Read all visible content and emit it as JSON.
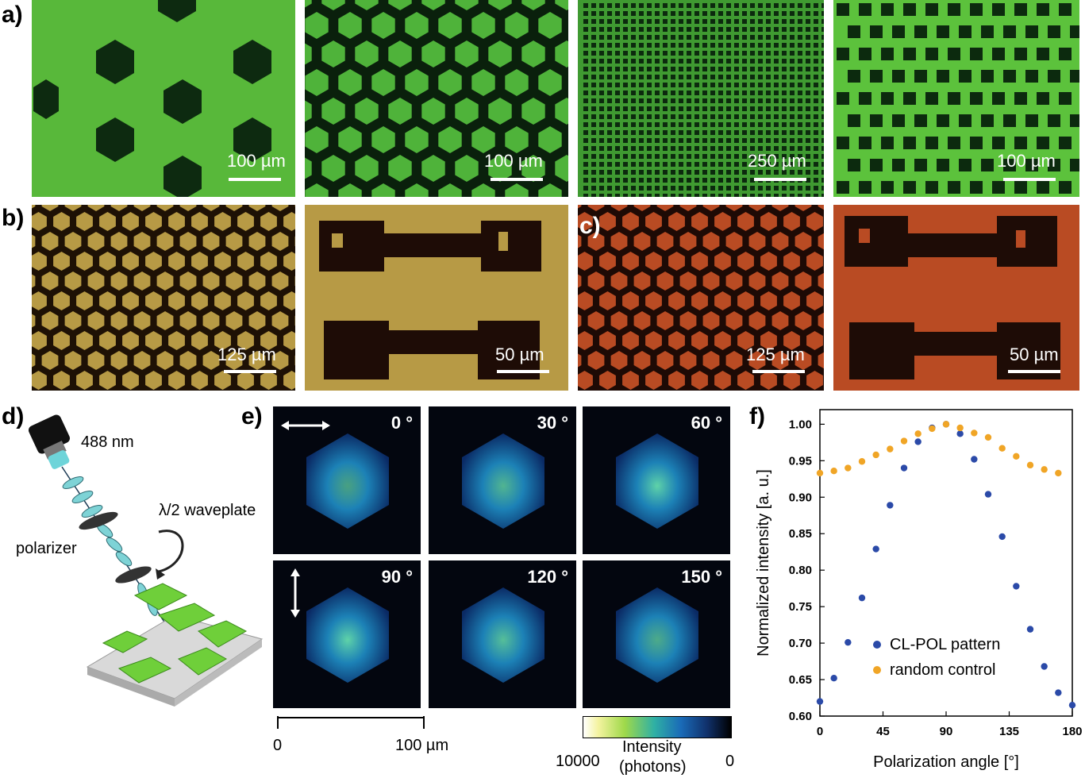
{
  "panel_labels": {
    "a": "a)",
    "b": "b)",
    "c": "c)",
    "d": "d)",
    "e": "e)",
    "f": "f)"
  },
  "row_a": {
    "scale_bars": [
      "100 µm",
      "100 µm",
      "250 µm",
      "100 µm"
    ],
    "colors": {
      "bg": "#58b83a",
      "dark": "#0d2a10"
    }
  },
  "row_bc": {
    "scale_bars": [
      "125 µm",
      "50 µm",
      "125 µm",
      "50 µm"
    ],
    "colors": {
      "yellow_bg": "#b79a45",
      "red_bg": "#b94b23",
      "dark": "#1e0c06"
    }
  },
  "panel_d": {
    "wavelength": "488 nm",
    "waveplate": "λ/2 waveplate",
    "polarizer": "polarizer"
  },
  "panel_e": {
    "angles": [
      "0 °",
      "30 °",
      "60 °",
      "90 °",
      "120 °",
      "150 °"
    ],
    "scale_min": "0",
    "scale_max": "100 µm",
    "colorbar_label_1": "Intensity",
    "colorbar_label_2": "(photons)",
    "colorbar_left": "10000",
    "colorbar_right": "0"
  },
  "chart_data": {
    "type": "scatter",
    "xlabel": "Polarization angle [°]",
    "ylabel": "Normalized intensity [a. u.]",
    "xlim": [
      0,
      180
    ],
    "ylim": [
      0.6,
      1.02
    ],
    "xticks": [
      0,
      45,
      90,
      135,
      180
    ],
    "yticks": [
      0.6,
      0.65,
      0.7,
      0.75,
      0.8,
      0.85,
      0.9,
      0.95,
      1.0
    ],
    "ytick_labels": [
      "0.60",
      "0.65",
      "0.70",
      "0.75",
      "0.80",
      "0.85",
      "0.90",
      "0.95",
      "1.00"
    ],
    "legend_position": "bottom-left",
    "series": [
      {
        "name": "CL-POL pattern",
        "color": "#2b4aa8",
        "x": [
          0,
          10,
          20,
          30,
          40,
          50,
          60,
          70,
          80,
          90,
          100,
          110,
          120,
          130,
          140,
          150,
          160,
          170,
          180
        ],
        "y": [
          0.62,
          0.652,
          0.701,
          0.762,
          0.829,
          0.889,
          0.94,
          0.976,
          0.995,
          1.0,
          0.987,
          0.952,
          0.904,
          0.846,
          0.778,
          0.719,
          0.668,
          0.632,
          0.615
        ]
      },
      {
        "name": "random control",
        "color": "#f0a526",
        "x": [
          0,
          10,
          20,
          30,
          40,
          50,
          60,
          70,
          80,
          90,
          100,
          110,
          120,
          130,
          140,
          150,
          160,
          170
        ],
        "y": [
          0.933,
          0.936,
          0.94,
          0.949,
          0.958,
          0.966,
          0.977,
          0.987,
          0.994,
          1.0,
          0.995,
          0.988,
          0.982,
          0.967,
          0.956,
          0.944,
          0.938,
          0.933
        ]
      }
    ]
  }
}
